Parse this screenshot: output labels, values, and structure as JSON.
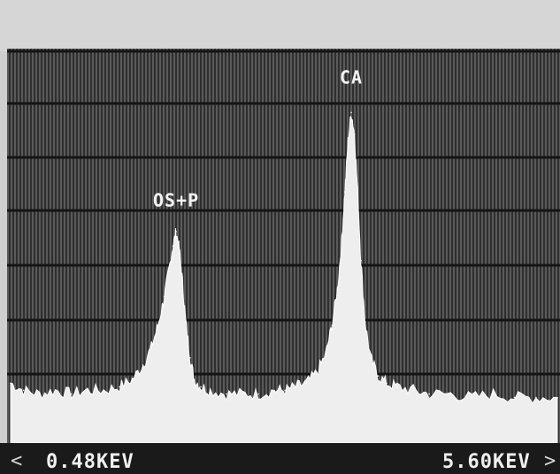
{
  "chart_data": {
    "type": "line",
    "title": "",
    "xlabel": "",
    "ylabel": "",
    "xlim": [
      0.48,
      5.6
    ],
    "ylim": [
      0,
      100
    ],
    "grid": true,
    "x": [
      0.48,
      0.6,
      0.75,
      0.9,
      1.05,
      1.2,
      1.35,
      1.5,
      1.62,
      1.72,
      1.8,
      1.86,
      1.92,
      1.96,
      2.0,
      2.03,
      2.06,
      2.09,
      2.12,
      2.16,
      2.2,
      2.26,
      2.35,
      2.5,
      2.65,
      2.8,
      2.95,
      3.05,
      3.15,
      3.25,
      3.35,
      3.43,
      3.49,
      3.54,
      3.58,
      3.61,
      3.64,
      3.67,
      3.7,
      3.73,
      3.76,
      3.8,
      3.85,
      3.92,
      4.0,
      4.1,
      4.25,
      4.4,
      4.6,
      4.8,
      5.0,
      5.2,
      5.4,
      5.6
    ],
    "series": [
      {
        "values": [
          9,
          7,
          6,
          7,
          6,
          7,
          7,
          8,
          10,
          14,
          19,
          25,
          33,
          40,
          47,
          51,
          46,
          37,
          26,
          16,
          10,
          8,
          7,
          6,
          6,
          6,
          7,
          7,
          8,
          9,
          12,
          17,
          25,
          35,
          48,
          62,
          76,
          84,
          78,
          62,
          43,
          26,
          16,
          11,
          9,
          8,
          7,
          6,
          6,
          5,
          6,
          5,
          5,
          5
        ]
      }
    ],
    "annotations": [
      {
        "text": "OS+P",
        "x": 2.03,
        "y": 58
      },
      {
        "text": "CA",
        "x": 3.67,
        "y": 92
      }
    ],
    "x_start_readout": "0.48KEV",
    "x_end_readout": "5.60KEV",
    "left_arrow": "<",
    "right_arrow": ">",
    "colors": {
      "background_top": "#d6d6d6",
      "grid_field": "#3e3e3e",
      "grid_line": "#141414",
      "trace_fill": "#eeeeee",
      "readout_bar": "#1a1a1a"
    }
  }
}
